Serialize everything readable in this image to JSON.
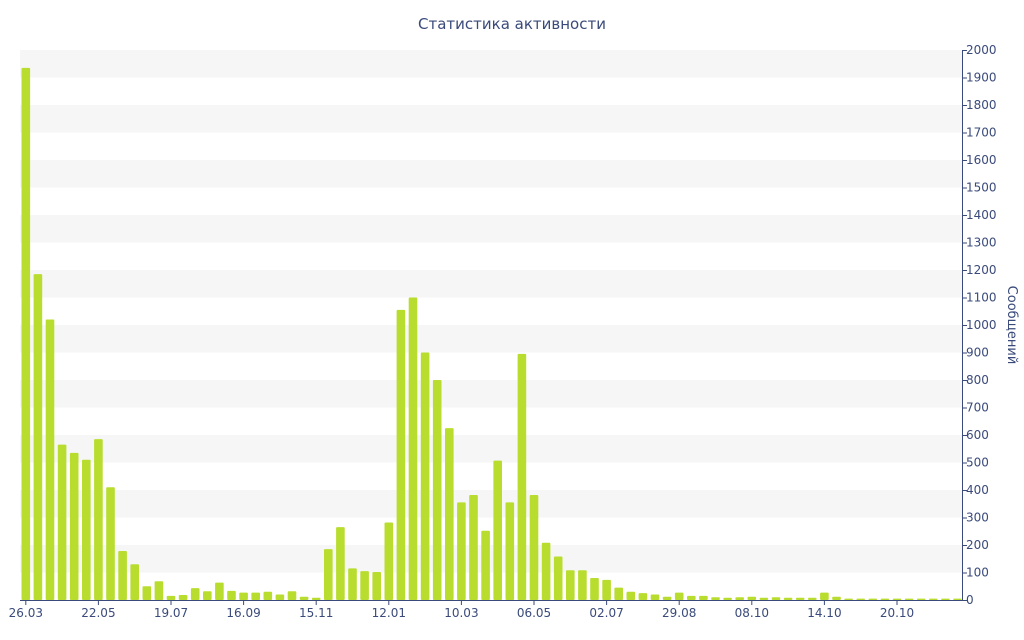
{
  "chart_data": {
    "type": "bar",
    "title": "Статистика активности",
    "xlabel": "",
    "ylabel": "Сообщений",
    "ylim": [
      0,
      2000
    ],
    "y_ticks": [
      0,
      100,
      200,
      300,
      400,
      500,
      600,
      700,
      800,
      900,
      1000,
      1100,
      1200,
      1300,
      1400,
      1500,
      1600,
      1700,
      1800,
      1900,
      2000
    ],
    "y_axis_position": "right",
    "grid": "horizontal-bands",
    "x_tick_labels": [
      {
        "index": 0,
        "label": "26.03"
      },
      {
        "index": 6,
        "label": "22.05"
      },
      {
        "index": 12,
        "label": "19.07"
      },
      {
        "index": 18,
        "label": "16.09"
      },
      {
        "index": 24,
        "label": "15.11"
      },
      {
        "index": 30,
        "label": "12.01"
      },
      {
        "index": 36,
        "label": "10.03"
      },
      {
        "index": 42,
        "label": "06.05"
      },
      {
        "index": 48,
        "label": "02.07"
      },
      {
        "index": 54,
        "label": "29.08"
      },
      {
        "index": 60,
        "label": "08.10"
      },
      {
        "index": 66,
        "label": "14.10"
      },
      {
        "index": 72,
        "label": "20.10"
      }
    ],
    "values": [
      1935,
      1185,
      1020,
      565,
      535,
      510,
      585,
      410,
      178,
      130,
      50,
      68,
      15,
      18,
      43,
      32,
      63,
      33,
      27,
      27,
      30,
      20,
      32,
      12,
      8,
      185,
      265,
      115,
      105,
      102,
      282,
      1055,
      1100,
      900,
      800,
      625,
      355,
      382,
      252,
      507,
      355,
      895,
      382,
      208,
      158,
      108,
      108,
      80,
      73,
      45,
      30,
      25,
      20,
      12,
      27,
      15,
      15,
      10,
      8,
      10,
      12,
      8,
      10,
      8,
      8,
      8,
      27,
      12,
      5,
      5,
      5,
      5,
      5,
      5,
      5,
      5,
      5,
      5
    ],
    "colors": {
      "bar": "#b8dd2e",
      "band": "#f6f6f6",
      "axis": "#3a4a7a",
      "text": "#3a4a7a"
    }
  }
}
